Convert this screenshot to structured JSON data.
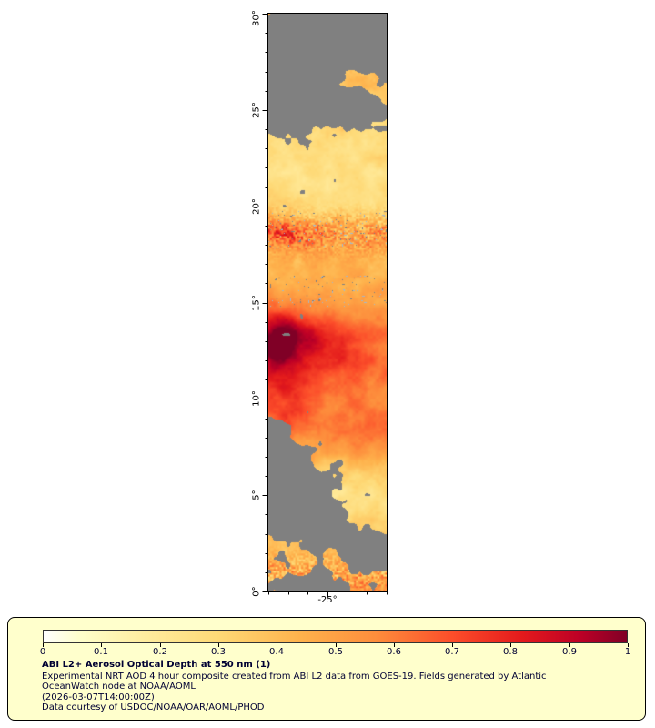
{
  "colors": {
    "page_bg": "#ffffff",
    "legend_bg": "#ffffcc",
    "legend_border": "#000000",
    "text": "#000033",
    "axis": "#000000",
    "missing_gray": "#808080",
    "cloud_blue": "#a4b8cc"
  },
  "figure": {
    "y_tick_labels": [
      "0°",
      "5°",
      "10°",
      "15°",
      "20°",
      "25°",
      "30°"
    ],
    "x_tick_label": "-25°"
  },
  "legend": {
    "colorbar_ticks": [
      "0",
      "0.1",
      "0.2",
      "0.3",
      "0.4",
      "0.5",
      "0.6",
      "0.7",
      "0.8",
      "0.9",
      "1"
    ],
    "title": "ABI L2+ Aerosol Optical Depth at 550 nm (1)",
    "description_line1": "Experimental NRT AOD 4 hour composite created from ABI L2 data from GOES-19. Fields generated by Atlantic",
    "description_line2": "OceanWatch node at NOAA/AOML",
    "timestamp_line": "(2026-03-07T14:00:00Z)",
    "credit_line": "Data courtesy of USDOC/NOAA/OAR/AOML/PHOD"
  },
  "chart_data": {
    "type": "heatmap",
    "title": "ABI L2+ Aerosol Optical Depth at 550 nm (1)",
    "subtitle": "Experimental NRT AOD 4 hour composite created from ABI L2 data from GOES-19. Fields generated by Atlantic OceanWatch node at NOAA/AOML",
    "timestamp": "(2026-03-07T14:00:00Z)",
    "credit": "Data courtesy of USDOC/NOAA/OAR/AOML/PHOD",
    "colorbar": {
      "min": 0,
      "max": 1,
      "tick_values": [
        0,
        0.1,
        0.2,
        0.3,
        0.4,
        0.5,
        0.6,
        0.7,
        0.8,
        0.9,
        1
      ],
      "colormap_name": "YlOrRd (white to dark maroon)"
    },
    "x_axis": {
      "kind": "longitude",
      "visible_tick_deg": -25,
      "range_deg": [
        -28,
        -22
      ],
      "minor_step_deg": 1
    },
    "y_axis": {
      "kind": "latitude",
      "ticks_deg": [
        0,
        5,
        10,
        15,
        20,
        25,
        30
      ],
      "range_deg": [
        0,
        30
      ],
      "minor_step_deg": 1
    },
    "missing_data_color": "#808080",
    "features": [
      {
        "region": "dense dust plume near west edge, 11-14N",
        "approx_aod": 0.95
      },
      {
        "region": "broad orange-red band 8-14N",
        "approx_aod": 0.6
      },
      {
        "region": "speckled moderate band near 18-19N",
        "approx_aod": 0.55
      },
      {
        "region": "pale yellow background 19-23N",
        "approx_aod": 0.25
      },
      {
        "region": "moderate field 24-30N between cloud gaps",
        "approx_aod": 0.35
      },
      {
        "region": "pale field 4-6N east of cloud mask",
        "approx_aod": 0.3
      },
      {
        "region": "speckled strip 0-2N",
        "approx_aod": 0.5
      },
      {
        "region": "gray areas = cloud / missing data mask (top 24-30N, bottom-left 2-7N, bottom strip)",
        "approx_aod": null
      }
    ],
    "render": {
      "lat_range": [
        0,
        30
      ],
      "lon_range": [
        -28,
        -22
      ],
      "gray": "#808080",
      "cloud_blue": "#a4b8cc",
      "colormap_stops": [
        [
          0,
          "#ffffff"
        ],
        [
          0.06,
          "#ffffcc"
        ],
        [
          0.17,
          "#ffeda0"
        ],
        [
          0.3,
          "#fed976"
        ],
        [
          0.44,
          "#feb24c"
        ],
        [
          0.57,
          "#fd8d3c"
        ],
        [
          0.7,
          "#fc4e2a"
        ],
        [
          0.82,
          "#e31a1c"
        ],
        [
          0.92,
          "#bd0026"
        ],
        [
          1,
          "#800026"
        ]
      ],
      "base_profile": [
        [
          0,
          0.5
        ],
        [
          1,
          0.46
        ],
        [
          2,
          0.42
        ],
        [
          3,
          0.38
        ],
        [
          4,
          0.32
        ],
        [
          5,
          0.3
        ],
        [
          6,
          0.36
        ],
        [
          7,
          0.44
        ],
        [
          8,
          0.5
        ],
        [
          9,
          0.55
        ],
        [
          10,
          0.58
        ],
        [
          11,
          0.6
        ],
        [
          12,
          0.62
        ],
        [
          13,
          0.62
        ],
        [
          14,
          0.56
        ],
        [
          15,
          0.5
        ],
        [
          16,
          0.45
        ],
        [
          17,
          0.44
        ],
        [
          18,
          0.5
        ],
        [
          19,
          0.46
        ],
        [
          20,
          0.3
        ],
        [
          21,
          0.26
        ],
        [
          22,
          0.26
        ],
        [
          23,
          0.28
        ],
        [
          24,
          0.31
        ],
        [
          25,
          0.3
        ],
        [
          26,
          0.33
        ],
        [
          27,
          0.36
        ],
        [
          28,
          0.37
        ],
        [
          29,
          0.35
        ],
        [
          30,
          0.34
        ]
      ],
      "blobs": [
        {
          "u": 0.08,
          "lat": 12.7,
          "su": 0.2,
          "slat": 1.7,
          "amp": 0.42
        },
        {
          "u": 0.25,
          "lat": 13.5,
          "su": 0.3,
          "slat": 1.1,
          "amp": 0.18
        },
        {
          "u": 0.55,
          "lat": 12.2,
          "su": 0.35,
          "slat": 1.6,
          "amp": 0.14
        },
        {
          "u": 0.12,
          "lat": 18.6,
          "su": 0.3,
          "slat": 0.7,
          "amp": 0.2
        },
        {
          "u": 0.75,
          "lat": 8.3,
          "su": 0.4,
          "slat": 1.4,
          "amp": 0.1
        },
        {
          "u": 0.15,
          "lat": 9.5,
          "su": 0.25,
          "slat": 1.5,
          "amp": 0.15
        },
        {
          "u": 0.9,
          "lat": 28.0,
          "su": 0.35,
          "slat": 1.6,
          "amp": 0.12
        },
        {
          "u": 0.1,
          "lat": 29.5,
          "su": 0.25,
          "slat": 1.2,
          "amp": 0.15
        },
        {
          "u": 0.6,
          "lat": 5.0,
          "su": 0.5,
          "slat": 1.5,
          "amp": -0.08
        }
      ],
      "noise_amp": 0.09,
      "speckle_bands": [
        {
          "lat": 18.6,
          "s": 1.0,
          "amp": 0.2
        },
        {
          "lat": 0.8,
          "s": 1.0,
          "amp": 0.22
        },
        {
          "lat": 29,
          "s": 1.5,
          "amp": 0.1
        }
      ],
      "clouds": {
        "top_start": 23.5,
        "top_full": 30,
        "top_density": 0.45,
        "noise_scale": 0.65,
        "threshold": 0.6,
        "blobs": [
          {
            "u": 0.18,
            "lat": 4.6,
            "ru": 0.42,
            "rlat": 2.3,
            "w": 0.75
          },
          {
            "u": 0.5,
            "lat": 3.2,
            "ru": 0.2,
            "rlat": 0.9,
            "w": 0.5
          },
          {
            "u": 0.03,
            "lat": 7.5,
            "ru": 0.15,
            "rlat": 1.3,
            "w": 0.6
          },
          {
            "u": 0.3,
            "lat": 0.4,
            "ru": 0.3,
            "rlat": 0.8,
            "w": 0.5
          },
          {
            "u": 0.85,
            "lat": 1.8,
            "ru": 0.3,
            "rlat": 1.4,
            "w": 0.55
          },
          {
            "u": 0.25,
            "lat": 24.7,
            "ru": 0.5,
            "rlat": 1.1,
            "w": 0.5
          },
          {
            "u": 0.7,
            "lat": 25.2,
            "ru": 0.3,
            "rlat": 0.8,
            "w": 0.4
          },
          {
            "u": 0.45,
            "lat": 28.6,
            "ru": 0.5,
            "rlat": 1.6,
            "w": 0.45
          },
          {
            "u": 0.15,
            "lat": 27.2,
            "ru": 0.3,
            "rlat": 1.0,
            "w": 0.4
          }
        ],
        "speck_threshold": 0.88,
        "speck_bands": [
          {
            "lat": 18.8,
            "s": 1.0
          },
          {
            "lat": 15.6,
            "s": 0.8
          }
        ]
      }
    }
  }
}
